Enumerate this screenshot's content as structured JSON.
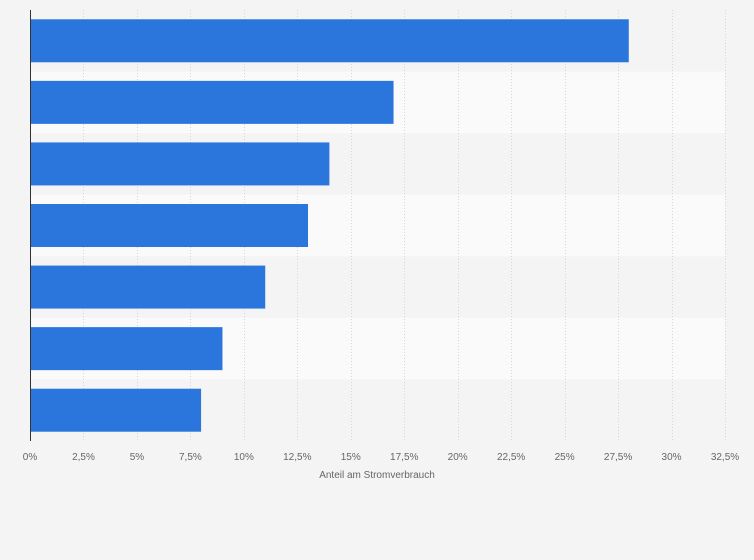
{
  "chart_data": {
    "type": "bar",
    "orientation": "horizontal",
    "title": "",
    "xlabel": "Anteil am Stromverbrauch",
    "ylabel": "",
    "categories": [
      "",
      "",
      "",
      "",
      "",
      "",
      ""
    ],
    "values": [
      28,
      17,
      14,
      13,
      11,
      9,
      8
    ],
    "xlim": [
      0,
      32.5
    ],
    "ticks": [
      0,
      2.5,
      5,
      7.5,
      10,
      12.5,
      15,
      17.5,
      20,
      22.5,
      25,
      27.5,
      30,
      32.5
    ],
    "tick_labels": [
      "0%",
      "2,5%",
      "5%",
      "7,5%",
      "10%",
      "12,5%",
      "15%",
      "17,5%",
      "20%",
      "22,5%",
      "25%",
      "27,5%",
      "30%",
      "32,5%"
    ],
    "grid": true,
    "legend": "none"
  },
  "colors": {
    "bar": "#2a76dd",
    "background": "#f4f4f4",
    "band_alt": "#fafafa",
    "grid": "#d6d6d6",
    "axis": "#333333"
  }
}
